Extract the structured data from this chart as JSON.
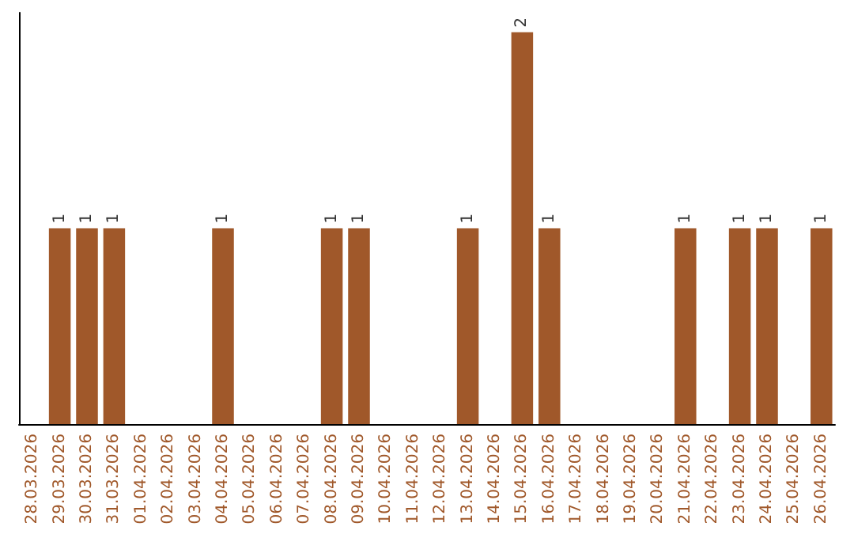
{
  "chart_data": {
    "type": "bar",
    "categories": [
      "28.03.2026",
      "29.03.2026",
      "30.03.2026",
      "31.03.2026",
      "01.04.2026",
      "02.04.2026",
      "03.04.2026",
      "04.04.2026",
      "05.04.2026",
      "06.04.2026",
      "07.04.2026",
      "08.04.2026",
      "09.04.2026",
      "10.04.2026",
      "11.04.2026",
      "12.04.2026",
      "13.04.2026",
      "14.04.2026",
      "15.04.2026",
      "16.04.2026",
      "17.04.2026",
      "18.04.2026",
      "19.04.2026",
      "20.04.2026",
      "21.04.2026",
      "22.04.2026",
      "23.04.2026",
      "24.04.2026",
      "25.04.2026",
      "26.04.2026"
    ],
    "values": [
      0,
      1,
      1,
      1,
      0,
      0,
      0,
      1,
      0,
      0,
      0,
      1,
      1,
      0,
      0,
      0,
      1,
      0,
      2,
      1,
      0,
      0,
      0,
      0,
      1,
      0,
      1,
      1,
      0,
      1
    ],
    "value_labels": [
      null,
      "1",
      "1",
      "1",
      null,
      null,
      null,
      "1",
      null,
      null,
      null,
      "1",
      "1",
      null,
      null,
      null,
      "1",
      null,
      "2",
      "1",
      null,
      null,
      null,
      null,
      "1",
      null,
      "1",
      "1",
      null,
      "1"
    ],
    "color": "#a0582a"
  }
}
